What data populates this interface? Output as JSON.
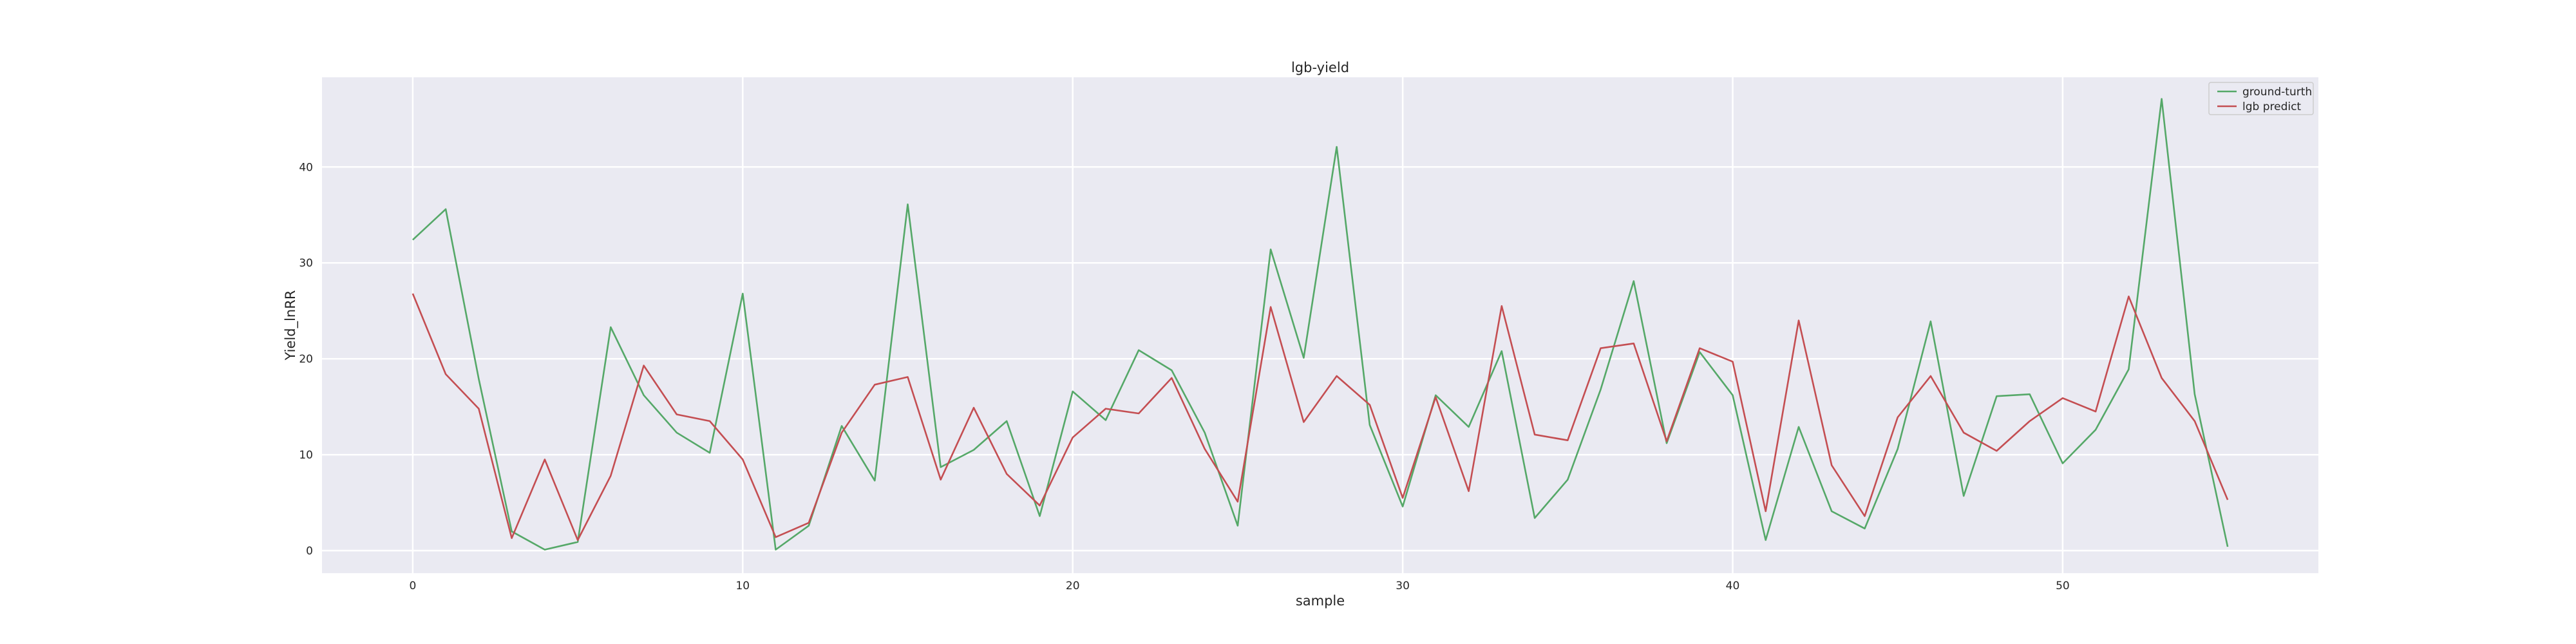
{
  "chart_data": {
    "type": "line",
    "title": "lgb-yield",
    "xlabel": "sample",
    "ylabel": "Yield_lnRR",
    "xlim": [
      -2.75,
      57.75
    ],
    "ylim": [
      -2.35,
      49.35
    ],
    "xticks": [
      0,
      10,
      20,
      30,
      40,
      50
    ],
    "yticks": [
      0,
      10,
      20,
      30,
      40
    ],
    "grid": true,
    "legend_position": "top-right",
    "x": [
      0,
      1,
      2,
      3,
      4,
      5,
      6,
      7,
      8,
      9,
      10,
      11,
      12,
      13,
      14,
      15,
      16,
      17,
      18,
      19,
      20,
      21,
      22,
      23,
      24,
      25,
      26,
      27,
      28,
      29,
      30,
      31,
      32,
      33,
      34,
      35,
      36,
      37,
      38,
      39,
      40,
      41,
      42,
      43,
      44,
      45,
      46,
      47,
      48,
      49,
      50,
      51,
      52,
      53,
      54,
      55
    ],
    "series": [
      {
        "name": "ground-turth",
        "color": "#55a868",
        "values": [
          32.4,
          35.6,
          17.9,
          2.0,
          0.1,
          0.9,
          23.3,
          16.2,
          12.3,
          10.2,
          26.8,
          0.1,
          2.6,
          13.0,
          7.3,
          36.1,
          8.7,
          10.5,
          13.5,
          3.6,
          16.6,
          13.6,
          20.9,
          18.8,
          12.3,
          2.6,
          31.4,
          20.1,
          42.1,
          13.1,
          4.6,
          16.2,
          12.9,
          20.8,
          3.4,
          7.4,
          16.8,
          28.1,
          11.2,
          20.7,
          16.2,
          1.1,
          12.9,
          4.1,
          2.3,
          10.6,
          23.9,
          5.7,
          16.1,
          16.3,
          9.1,
          12.6,
          18.9,
          47.1,
          16.3,
          0.4
        ]
      },
      {
        "name": "lgb predict",
        "color": "#c44e52",
        "values": [
          26.8,
          18.4,
          14.8,
          1.3,
          9.5,
          1.1,
          7.8,
          19.3,
          14.2,
          13.5,
          9.5,
          1.4,
          2.9,
          12.3,
          17.3,
          18.1,
          7.4,
          14.9,
          8.0,
          4.7,
          11.8,
          14.8,
          14.3,
          18.0,
          10.6,
          5.1,
          25.4,
          13.4,
          18.2,
          15.2,
          5.5,
          16.0,
          6.2,
          25.5,
          12.1,
          11.5,
          21.1,
          21.6,
          11.4,
          21.1,
          19.7,
          4.1,
          24.0,
          8.9,
          3.6,
          13.9,
          18.2,
          12.3,
          10.4,
          13.5,
          15.9,
          14.5,
          26.5,
          18.0,
          13.5,
          5.3
        ]
      }
    ]
  }
}
